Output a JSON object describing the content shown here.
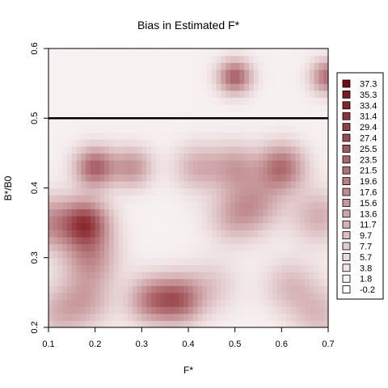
{
  "chart_data": {
    "type": "heatmap",
    "title": "Bias in Estimated F*",
    "xlabel": "F*",
    "ylabel": "B*/B0",
    "xlim": [
      0.1,
      0.7
    ],
    "ylim": [
      0.2,
      0.6
    ],
    "x_ticks": [
      "0.1",
      "0.2",
      "0.3",
      "0.4",
      "0.5",
      "0.6",
      "0.7"
    ],
    "y_ticks": [
      "0.2",
      "0.3",
      "0.4",
      "0.5",
      "0.6"
    ],
    "reference_line": {
      "axis": "y",
      "value": 0.5,
      "color": "#000000"
    },
    "color_scale": {
      "low": "#ffffff",
      "high": "#7a0a12"
    },
    "legend": {
      "placement": "right",
      "levels": [
        "37.3",
        "35.3",
        "33.4",
        "31.4",
        "29.4",
        "27.4",
        "25.5",
        "23.5",
        "21.5",
        "19.6",
        "17.6",
        "15.6",
        "13.6",
        "11.7",
        "9.7",
        "7.7",
        "5.7",
        "3.8",
        "1.8",
        "-0.2"
      ]
    },
    "background_level": 2,
    "hotspots": [
      {
        "x": 0.1,
        "y": 0.35,
        "value": 14,
        "spread": 0.04
      },
      {
        "x": 0.18,
        "y": 0.35,
        "value": 26,
        "spread": 0.035
      },
      {
        "x": 0.2,
        "y": 0.43,
        "value": 22,
        "spread": 0.03
      },
      {
        "x": 0.19,
        "y": 0.3,
        "value": 14,
        "spread": 0.04
      },
      {
        "x": 0.18,
        "y": 0.24,
        "value": 10,
        "spread": 0.04
      },
      {
        "x": 0.28,
        "y": 0.43,
        "value": 14,
        "spread": 0.03
      },
      {
        "x": 0.32,
        "y": 0.24,
        "value": 16,
        "spread": 0.035
      },
      {
        "x": 0.38,
        "y": 0.24,
        "value": 20,
        "spread": 0.035
      },
      {
        "x": 0.42,
        "y": 0.43,
        "value": 10,
        "spread": 0.035
      },
      {
        "x": 0.5,
        "y": 0.43,
        "value": 12,
        "spread": 0.035
      },
      {
        "x": 0.5,
        "y": 0.36,
        "value": 10,
        "spread": 0.04
      },
      {
        "x": 0.6,
        "y": 0.43,
        "value": 20,
        "spread": 0.035
      },
      {
        "x": 0.55,
        "y": 0.38,
        "value": 10,
        "spread": 0.04
      },
      {
        "x": 0.68,
        "y": 0.36,
        "value": 10,
        "spread": 0.04
      },
      {
        "x": 0.5,
        "y": 0.56,
        "value": 22,
        "spread": 0.025
      },
      {
        "x": 0.7,
        "y": 0.56,
        "value": 20,
        "spread": 0.025
      },
      {
        "x": 0.45,
        "y": 0.26,
        "value": 6,
        "spread": 0.04
      },
      {
        "x": 0.62,
        "y": 0.26,
        "value": 8,
        "spread": 0.04
      },
      {
        "x": 0.68,
        "y": 0.22,
        "value": 8,
        "spread": 0.04
      },
      {
        "x": 0.12,
        "y": 0.22,
        "value": 8,
        "spread": 0.04
      }
    ]
  }
}
